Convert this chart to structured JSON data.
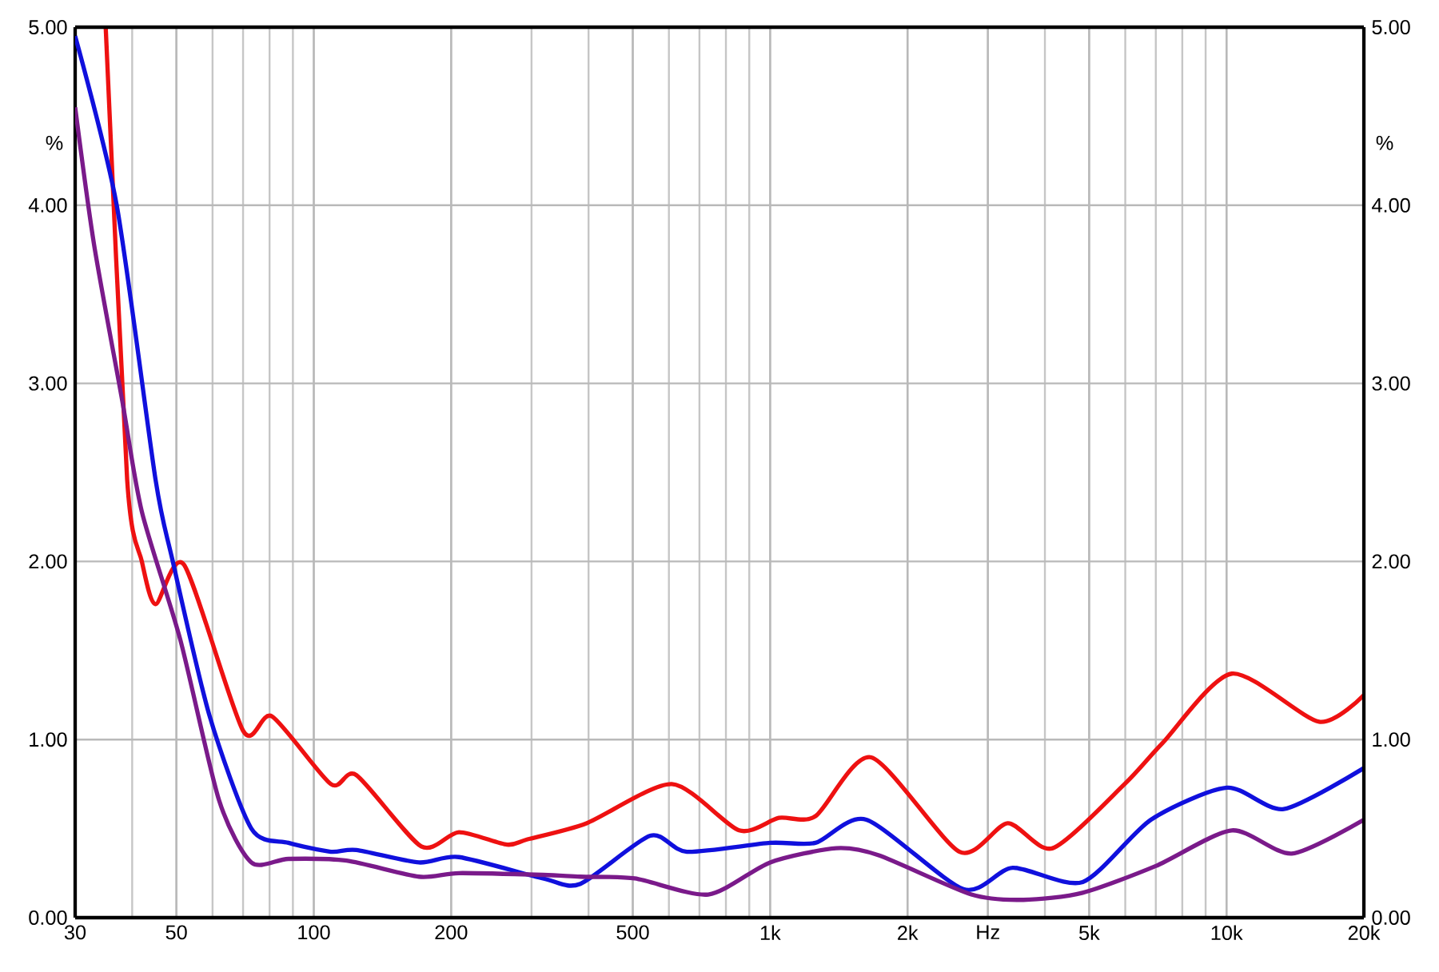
{
  "chart_data": {
    "type": "line",
    "log": "x",
    "grid": true,
    "marker": "none",
    "line_style": "solid",
    "xlim": [
      30,
      20000
    ],
    "ylim": [
      0,
      5
    ],
    "y2lim": [
      0,
      5
    ],
    "ylabel": "%",
    "y2label": "%",
    "xticks": [
      30,
      50,
      100,
      200,
      500,
      {
        "value": 1000,
        "label": "1k"
      },
      {
        "value": 2000,
        "label": "2k"
      },
      {
        "value": 3000,
        "label": "Hz"
      },
      {
        "value": 5000,
        "label": "5k"
      },
      {
        "value": 10000,
        "label": "10k"
      },
      {
        "value": 20000,
        "label": "20k"
      }
    ],
    "yticks": [
      {
        "value": 0,
        "label": "0.00"
      },
      {
        "value": 1,
        "label": "1.00"
      },
      {
        "value": 2,
        "label": "2.00"
      },
      {
        "value": 3,
        "label": "3.00"
      },
      {
        "value": 4,
        "label": "4.00"
      },
      {
        "value": 5,
        "label": "5.00"
      }
    ],
    "y2ticks": [
      {
        "value": 0,
        "label": "0.00"
      },
      {
        "value": 1,
        "label": "1.00"
      },
      {
        "value": 2,
        "label": "2.00"
      },
      {
        "value": 3,
        "label": "3.00"
      },
      {
        "value": 4,
        "label": "4.00"
      },
      {
        "value": 5,
        "label": "5.00"
      }
    ],
    "series": [
      {
        "color": "#ee1111",
        "x": [
          35,
          39,
          42,
          45,
          52,
          70,
          81,
          109,
          124,
          172,
          208,
          265,
          294,
          396,
          609,
          855,
          1045,
          1257,
          1665,
          2600,
          3315,
          4160,
          5980,
          7240,
          10270,
          15950,
          20000
        ],
        "values": [
          5.0,
          2.46,
          2.0,
          1.76,
          1.98,
          1.05,
          1.13,
          0.75,
          0.8,
          0.4,
          0.48,
          0.41,
          0.44,
          0.53,
          0.75,
          0.49,
          0.56,
          0.57,
          0.9,
          0.37,
          0.53,
          0.39,
          0.75,
          0.98,
          1.37,
          1.1,
          1.25
        ]
      },
      {
        "color": "#1010dd",
        "x": [
          30,
          37,
          45,
          49,
          59,
          73,
          88,
          109,
          124,
          170,
          208,
          318,
          384,
          546,
          657,
          1000,
          1257,
          1625,
          2650,
          3400,
          4840,
          6830,
          10020,
          13350,
          20000
        ],
        "values": [
          4.95,
          4.0,
          2.46,
          2.01,
          1.14,
          0.5,
          0.42,
          0.37,
          0.38,
          0.31,
          0.34,
          0.22,
          0.19,
          0.46,
          0.37,
          0.42,
          0.42,
          0.55,
          0.16,
          0.28,
          0.2,
          0.55,
          0.73,
          0.61,
          0.84
        ]
      },
      {
        "color": "#7a1a8a",
        "x": [
          30,
          33,
          38,
          42,
          51,
          62,
          73,
          88,
          118,
          170,
          208,
          318,
          384,
          505,
          732,
          1000,
          1395,
          1730,
          2760,
          3590,
          4840,
          7000,
          10270,
          13900,
          20000
        ],
        "values": [
          4.55,
          3.78,
          2.91,
          2.28,
          1.56,
          0.66,
          0.31,
          0.33,
          0.32,
          0.23,
          0.25,
          0.24,
          0.23,
          0.22,
          0.13,
          0.31,
          0.39,
          0.35,
          0.13,
          0.1,
          0.14,
          0.29,
          0.49,
          0.36,
          0.55
        ]
      }
    ]
  }
}
